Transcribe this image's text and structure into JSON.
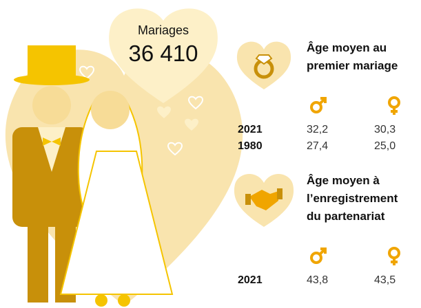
{
  "headline": {
    "label": "Mariages",
    "value": "36 410"
  },
  "sections": [
    {
      "title_lines": [
        "Âge moyen au",
        "premier mariage"
      ],
      "rows": [
        {
          "year": "2021",
          "men": "32,2",
          "women": "30,3"
        },
        {
          "year": "1980",
          "men": "27,4",
          "women": "25,0"
        }
      ]
    },
    {
      "title_lines": [
        "Âge moyen à",
        "l’enregistrement",
        "du partenariat"
      ],
      "rows": [
        {
          "year": "2021",
          "men": "43,8",
          "women": "43,5"
        }
      ]
    }
  ]
}
